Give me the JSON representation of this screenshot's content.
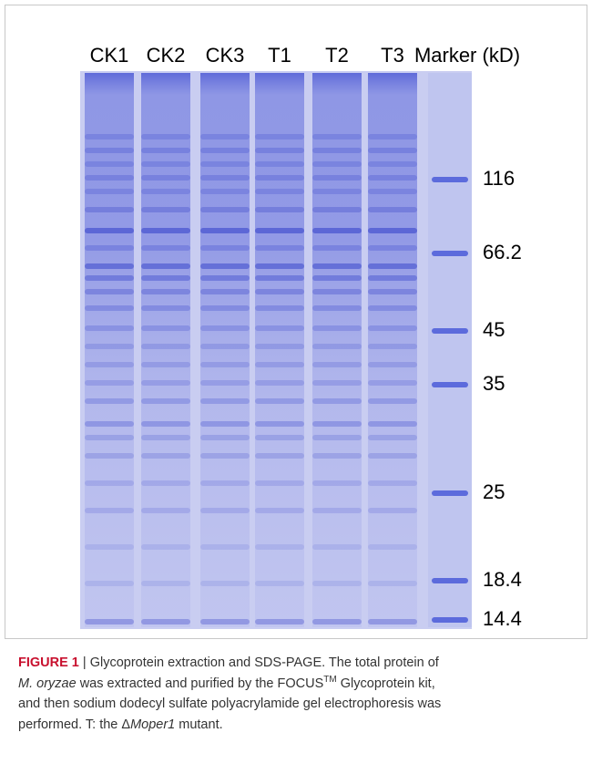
{
  "figure": {
    "lane_labels": [
      "CK1",
      "CK2",
      "CK3",
      "T1",
      "T2",
      "T3",
      "Marker (kD)"
    ],
    "marker_labels": [
      "116",
      "66.2",
      "45",
      "35",
      "25",
      "18.4",
      "14.4"
    ],
    "caption": {
      "label": "FIGURE 1",
      "separator": "|",
      "text_1": "Glycoprotein extraction and SDS-PAGE. The total protein of",
      "species": "M. oryzae",
      "text_2": "was extracted and purified by the FOCUS",
      "superscript": "TM",
      "text_3": "Glycoprotein kit,",
      "text_4": "and then sodium dodecyl sulfate polyacrylamide gel electrophoresis was",
      "text_5": "performed. T: the Δ",
      "mutant": "Moper1",
      "text_6": "mutant."
    }
  }
}
